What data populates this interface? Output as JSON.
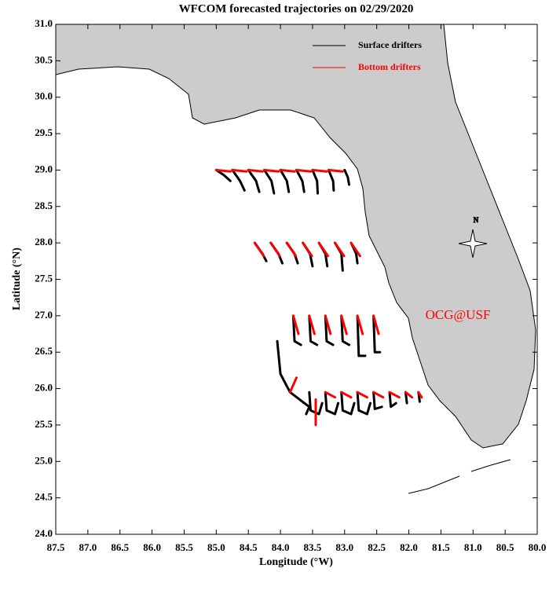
{
  "chart_data": {
    "type": "line",
    "title": "WFCOM forecasted trajectories on 02/29/2020",
    "x_label": "Longitude (°W)",
    "y_label": "Latitude (°N)",
    "annotation": "OCG@USF",
    "compass_label": "N",
    "legend": "upper right",
    "xlim": [
      87.5,
      80.0
    ],
    "xticks": [
      87.5,
      {
        "value": 87,
        "label": "87.0"
      },
      86.5,
      {
        "value": 86,
        "label": "86.0"
      },
      85.5,
      {
        "value": 85,
        "label": "85.0"
      },
      84.5,
      {
        "value": 84,
        "label": "84.0"
      },
      83.5,
      {
        "value": 83,
        "label": "83.0"
      },
      82.5,
      {
        "value": 82,
        "label": "82.0"
      },
      81.5,
      {
        "value": 81,
        "label": "81.0"
      },
      80.5,
      {
        "value": 80,
        "label": "80.0"
      }
    ],
    "ylim": [
      24.0,
      31.0
    ],
    "yticks": [
      {
        "value": 24,
        "label": "24.0"
      },
      24.5,
      {
        "value": 25,
        "label": "25.0"
      },
      25.5,
      {
        "value": 26,
        "label": "26.0"
      },
      26.5,
      {
        "value": 27,
        "label": "27.0"
      },
      27.5,
      {
        "value": 28,
        "label": "28.0"
      },
      28.5,
      {
        "value": 29,
        "label": "29.0"
      },
      29.5,
      {
        "value": 30,
        "label": "30.0"
      },
      30.5,
      {
        "value": 31,
        "label": "31.0"
      }
    ],
    "series": [
      {
        "name": "Surface drifters",
        "color": "#000000",
        "x": [
          85.0,
          84.88,
          84.78,
          null,
          84.75,
          84.63,
          84.56,
          null,
          84.5,
          84.38,
          84.33,
          null,
          84.25,
          84.14,
          84.1,
          null,
          84.0,
          83.9,
          83.87,
          null,
          83.75,
          83.66,
          83.63,
          null,
          83.5,
          83.43,
          83.42,
          null,
          83.25,
          83.18,
          83.17,
          null,
          83.0,
          82.95,
          82.93,
          null,
          84.4,
          84.28,
          84.22,
          null,
          84.15,
          84.03,
          83.97,
          null,
          83.9,
          83.78,
          83.73,
          null,
          83.65,
          83.54,
          83.5,
          null,
          83.4,
          83.3,
          83.27,
          null,
          83.15,
          83.05,
          83.03,
          null,
          82.9,
          82.82,
          82.8,
          null,
          83.8,
          83.78,
          83.68,
          null,
          83.55,
          83.53,
          83.43,
          null,
          83.3,
          83.28,
          83.18,
          null,
          83.05,
          83.03,
          82.93,
          null,
          82.8,
          82.78,
          82.68,
          null,
          82.55,
          82.53,
          82.45,
          null,
          83.55,
          83.53,
          83.4,
          83.35,
          null,
          83.3,
          83.28,
          83.15,
          83.1,
          null,
          83.05,
          83.03,
          82.9,
          82.85,
          null,
          82.8,
          82.78,
          82.65,
          82.6,
          null,
          82.55,
          82.53,
          82.42,
          null,
          82.3,
          82.28,
          82.2,
          null,
          82.05,
          82.03,
          null,
          81.85,
          81.83,
          null,
          84.05,
          84.0,
          83.85,
          83.55,
          83.6
        ],
        "values": [
          29.0,
          28.93,
          28.85,
          null,
          29.0,
          28.85,
          28.72,
          null,
          29.0,
          28.85,
          28.7,
          null,
          29.0,
          28.85,
          28.68,
          null,
          29.0,
          28.85,
          28.7,
          null,
          29.0,
          28.85,
          28.7,
          null,
          29.0,
          28.85,
          28.68,
          null,
          29.0,
          28.85,
          28.72,
          null,
          29.0,
          28.9,
          28.8,
          null,
          28.0,
          27.85,
          27.75,
          null,
          28.0,
          27.85,
          27.72,
          null,
          28.0,
          27.85,
          27.72,
          null,
          28.0,
          27.85,
          27.68,
          null,
          28.0,
          27.85,
          27.68,
          null,
          28.0,
          27.85,
          27.62,
          null,
          28.0,
          27.85,
          27.72,
          null,
          27.0,
          26.65,
          26.6,
          null,
          27.0,
          26.65,
          26.6,
          null,
          27.0,
          26.65,
          26.6,
          null,
          27.0,
          26.65,
          26.6,
          null,
          27.0,
          26.45,
          26.45,
          null,
          27.0,
          26.5,
          26.5,
          null,
          25.95,
          25.7,
          25.65,
          25.8,
          null,
          25.95,
          25.7,
          25.65,
          25.8,
          null,
          25.95,
          25.7,
          25.65,
          25.8,
          null,
          25.95,
          25.7,
          25.65,
          25.8,
          null,
          25.95,
          25.72,
          25.75,
          null,
          25.95,
          25.75,
          25.8,
          null,
          25.95,
          25.8,
          null,
          25.95,
          25.82,
          null,
          26.65,
          26.2,
          25.95,
          25.75,
          25.65
        ]
      },
      {
        "name": "Bottom drifters",
        "color": "#ff0000",
        "x": [
          85.0,
          84.78,
          null,
          84.75,
          84.53,
          null,
          84.5,
          84.28,
          null,
          84.25,
          84.03,
          null,
          84.0,
          83.78,
          null,
          83.75,
          83.53,
          null,
          83.5,
          83.28,
          null,
          83.25,
          83.03,
          null,
          84.4,
          84.26,
          null,
          84.15,
          84.01,
          null,
          83.9,
          83.76,
          null,
          83.65,
          83.51,
          null,
          83.4,
          83.26,
          null,
          83.15,
          83.01,
          null,
          82.9,
          82.76,
          null,
          83.8,
          83.72,
          null,
          83.55,
          83.47,
          null,
          83.3,
          83.22,
          null,
          83.05,
          82.97,
          null,
          82.8,
          82.72,
          null,
          82.55,
          82.47,
          null,
          83.3,
          83.15,
          null,
          83.05,
          82.9,
          null,
          82.8,
          82.65,
          null,
          82.55,
          82.4,
          null,
          82.3,
          82.15,
          null,
          82.05,
          81.95,
          null,
          81.85,
          81.8,
          null,
          83.85,
          83.75,
          null,
          83.45,
          83.45
        ],
        "values": [
          29.0,
          28.98,
          null,
          29.0,
          28.98,
          null,
          29.0,
          28.98,
          null,
          29.0,
          28.98,
          null,
          29.0,
          28.98,
          null,
          29.0,
          28.98,
          null,
          29.0,
          28.98,
          null,
          29.0,
          28.98,
          null,
          28.0,
          27.82,
          null,
          28.0,
          27.82,
          null,
          28.0,
          27.82,
          null,
          28.0,
          27.82,
          null,
          28.0,
          27.82,
          null,
          28.0,
          27.82,
          null,
          28.0,
          27.82,
          null,
          27.0,
          26.75,
          null,
          27.0,
          26.75,
          null,
          27.0,
          26.75,
          null,
          27.0,
          26.75,
          null,
          27.0,
          26.75,
          null,
          27.0,
          26.75,
          null,
          25.95,
          25.88,
          null,
          25.95,
          25.88,
          null,
          25.95,
          25.88,
          null,
          25.95,
          25.88,
          null,
          25.95,
          25.88,
          null,
          25.95,
          25.88,
          null,
          25.95,
          25.88,
          null,
          25.95,
          26.15,
          null,
          25.85,
          25.5
        ]
      }
    ]
  }
}
